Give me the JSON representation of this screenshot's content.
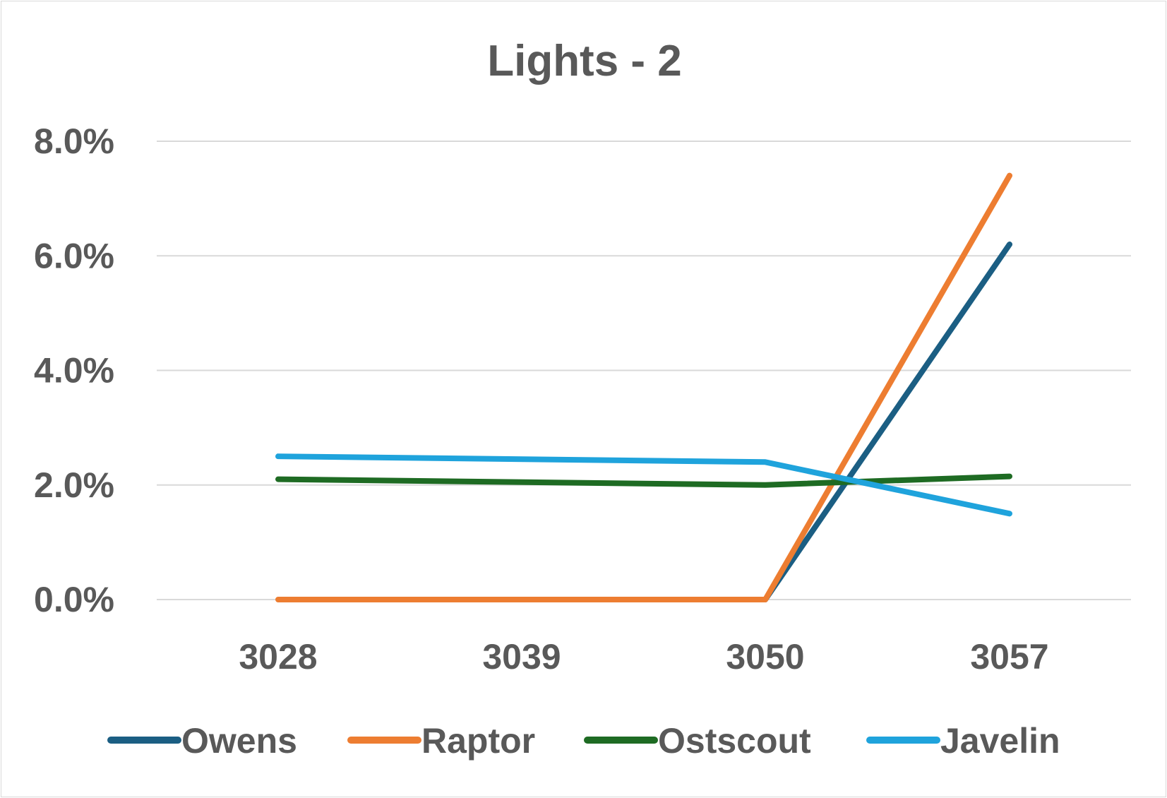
{
  "chart_data": {
    "type": "line",
    "title": "Lights - 2",
    "xlabel": "",
    "ylabel": "",
    "categories": [
      "3028",
      "3039",
      "3050",
      "3057"
    ],
    "y_tick_labels": [
      "0.0%",
      "2.0%",
      "4.0%",
      "6.0%",
      "8.0%"
    ],
    "ylim": [
      0,
      8
    ],
    "y_unit": "%",
    "grid": "horizontal",
    "legend_position": "bottom",
    "series": [
      {
        "name": "Owens",
        "color": "#1b5e83",
        "values": [
          null,
          null,
          0.0,
          6.2
        ]
      },
      {
        "name": "Raptor",
        "color": "#ed7d31",
        "values": [
          0.0,
          null,
          0.0,
          7.4
        ]
      },
      {
        "name": "Ostscout",
        "color": "#1e6b23",
        "values": [
          2.1,
          null,
          2.0,
          2.15
        ]
      },
      {
        "name": "Javelin",
        "color": "#1fa3dc",
        "values": [
          2.5,
          null,
          2.4,
          1.5
        ]
      }
    ]
  }
}
